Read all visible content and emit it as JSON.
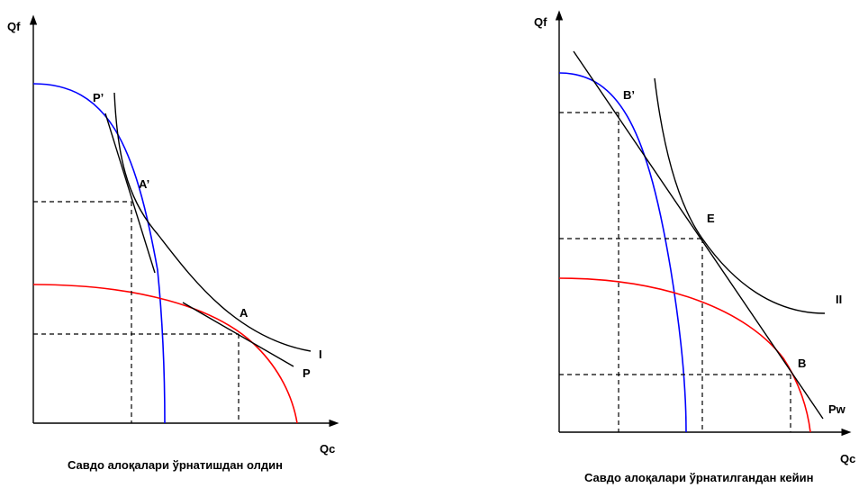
{
  "colors": {
    "domestic_ppf_blue": "#0000ff",
    "foreign_ppf_red": "#ff0000",
    "ink": "#000000"
  },
  "left_panel": {
    "y_axis_label": "Qf",
    "x_axis_label": "Qc",
    "points": {
      "p_prime": "P’",
      "a_prime": "A’",
      "a": "A",
      "p": "P",
      "indiff": "I"
    },
    "caption": "Савдо алоқалари ўрнатишдан олдин"
  },
  "right_panel": {
    "y_axis_label": "Qf",
    "x_axis_label": "Qc",
    "points": {
      "b_prime": "B’",
      "e": "E",
      "indiff": "II",
      "b": "B",
      "pw": "Pw"
    },
    "caption": "Савдо алоқалари ўрнатилгандан кейин"
  }
}
